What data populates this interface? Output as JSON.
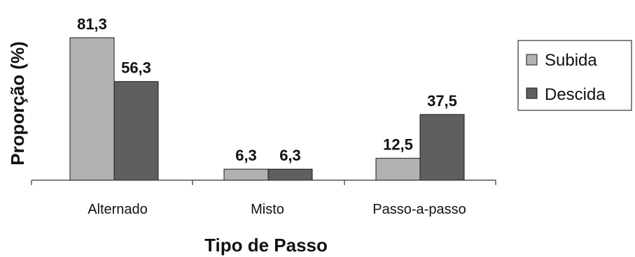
{
  "chart_data": {
    "type": "bar",
    "categories": [
      "Alternado",
      "Misto",
      "Passo-a-passo"
    ],
    "series": [
      {
        "name": "Subida",
        "values": [
          81.3,
          6.3,
          12.5
        ],
        "labels": [
          "81,3",
          "6,3",
          "12,5"
        ],
        "color": "#b2b2b2"
      },
      {
        "name": "Descida",
        "values": [
          56.3,
          6.3,
          37.5
        ],
        "labels": [
          "56,3",
          "6,3",
          "37,5"
        ],
        "color": "#5f5f5f"
      }
    ],
    "xlabel": "Tipo de Passo",
    "ylabel": "Proporção (%)",
    "ylim": [
      0,
      81.3
    ],
    "grid": false,
    "legend": "right",
    "bar_stroke": "#1a1a1a"
  }
}
